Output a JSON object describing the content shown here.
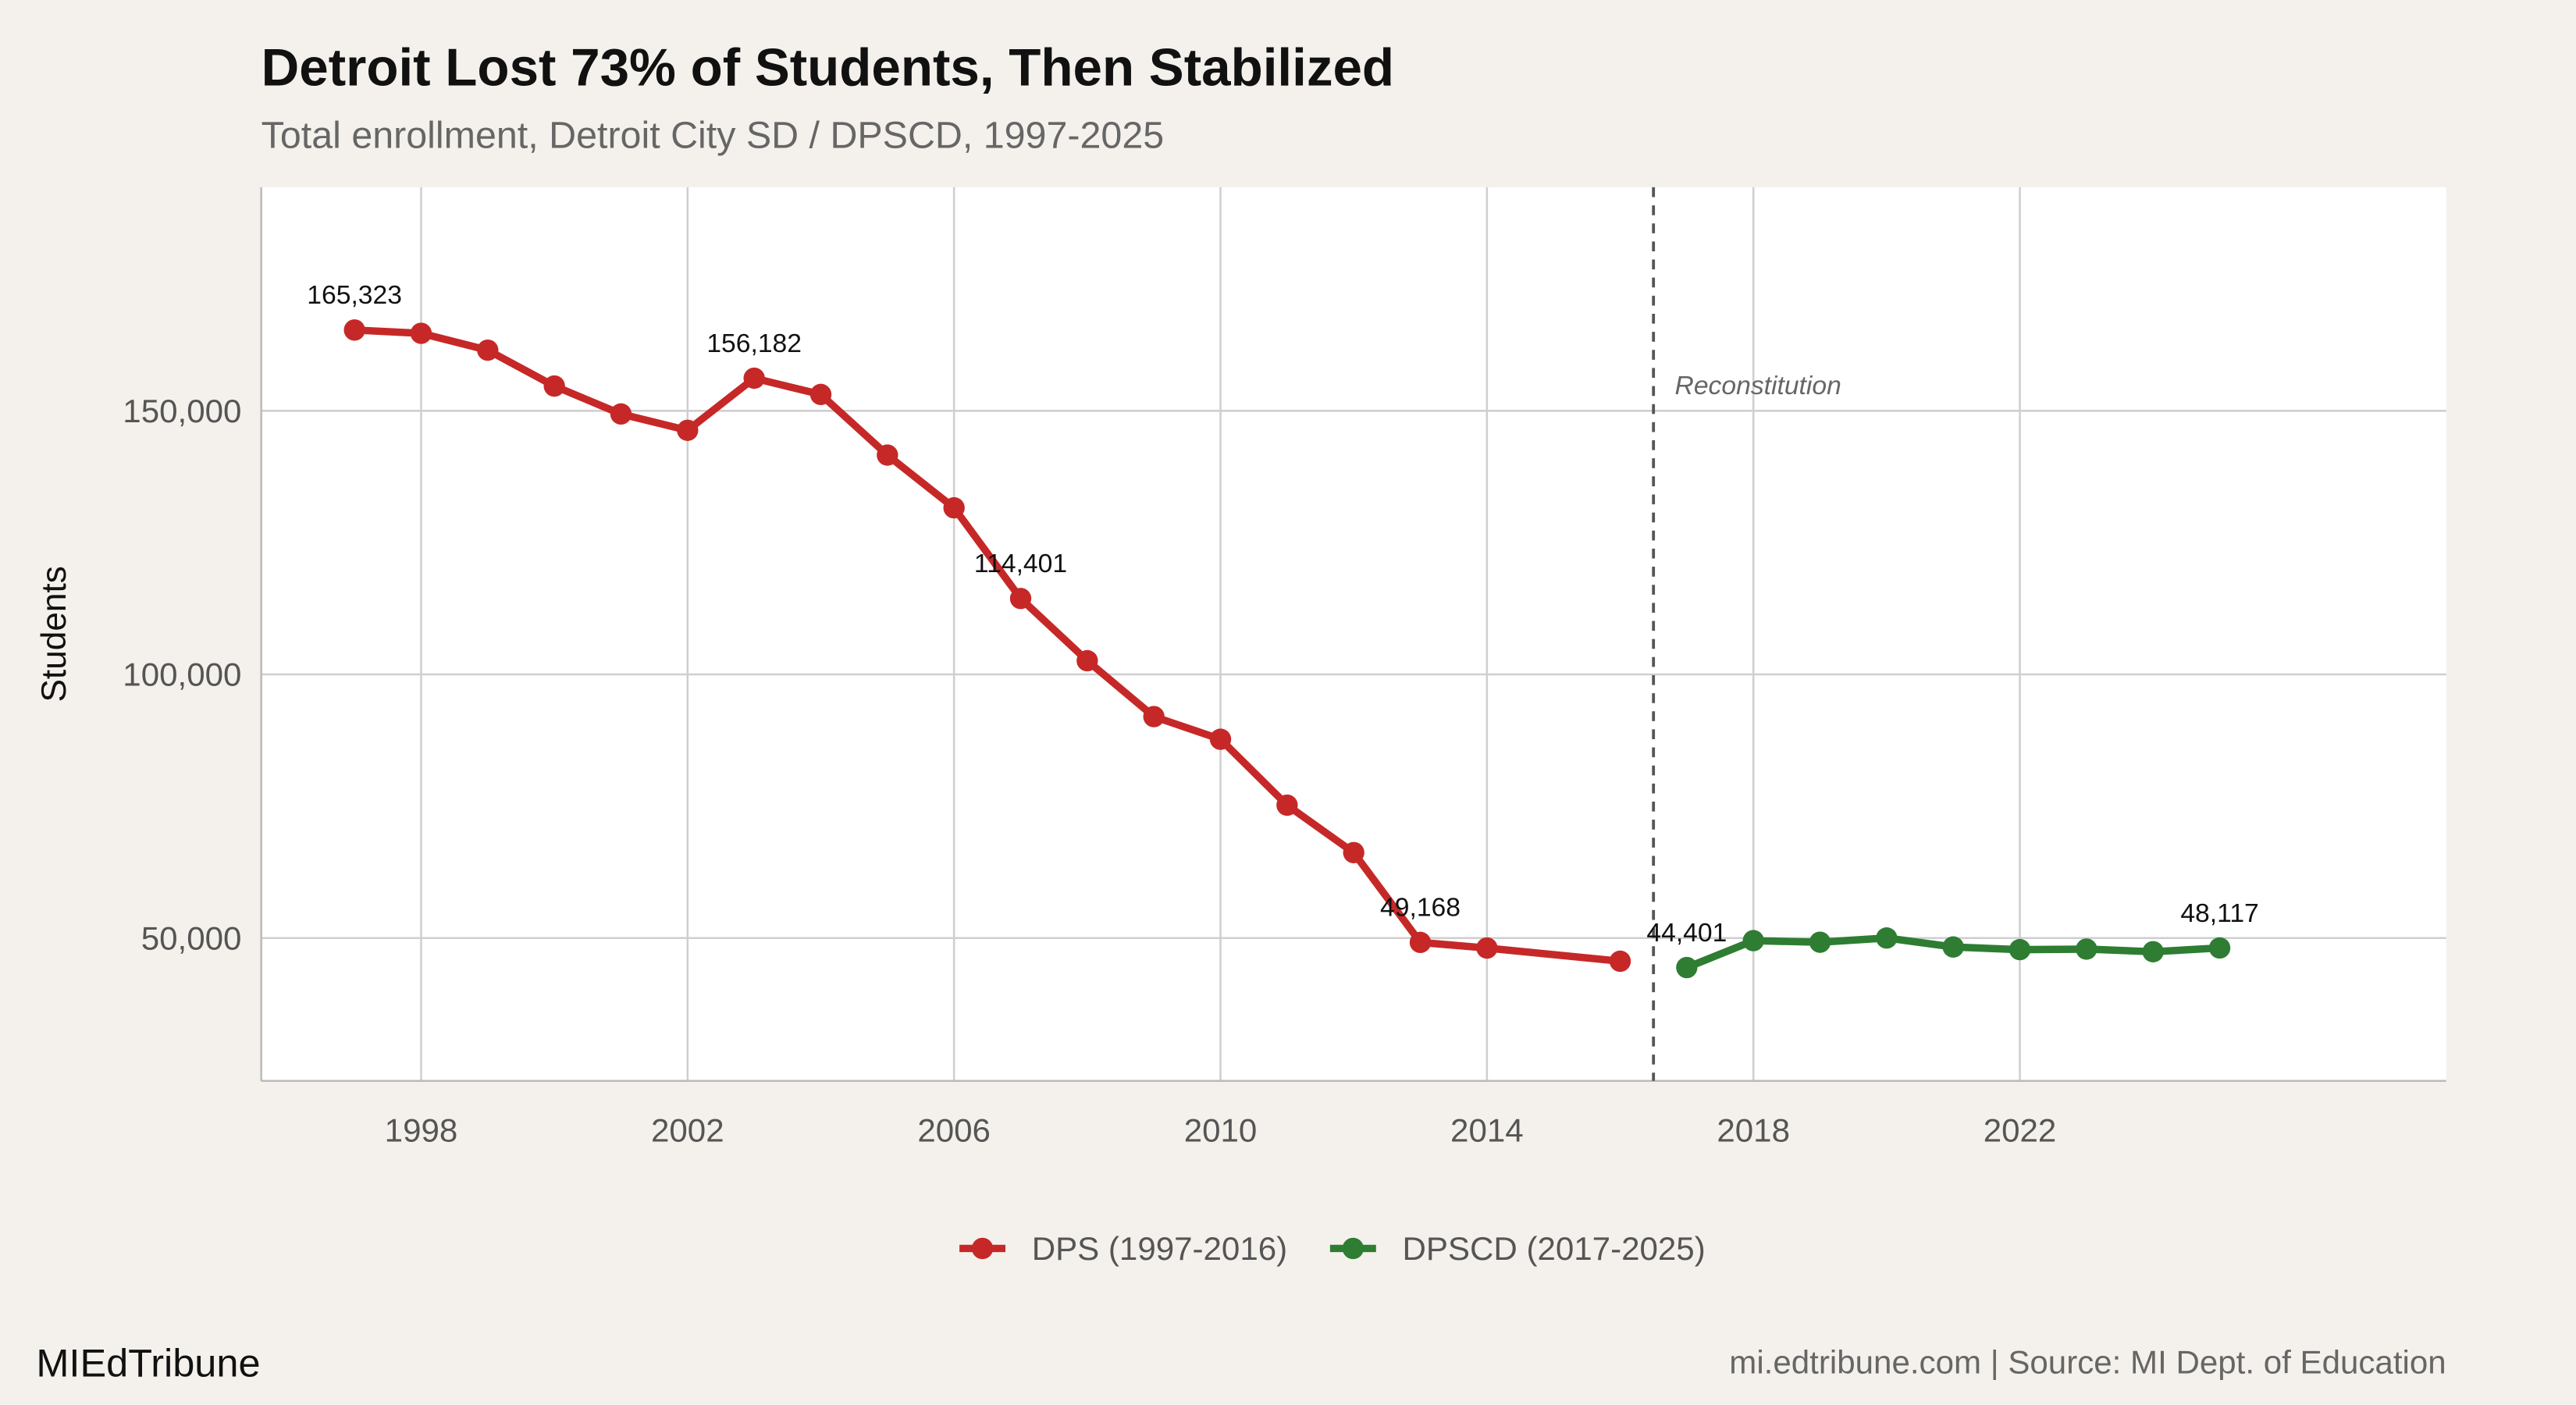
{
  "chart_data": {
    "type": "line",
    "title": "Detroit Lost 73% of Students, Then Stabilized",
    "subtitle": "Total enrollment, Detroit City SD / DPSCD, 1997-2025",
    "y_label": "Students",
    "series": [
      {
        "name": "DPS (1997-2016)",
        "color": "#c62828",
        "x": [
          1997,
          1998,
          1999,
          2000,
          2001,
          2002,
          2003,
          2004,
          2005,
          2006,
          2007,
          2008,
          2009,
          2010,
          2011,
          2012,
          2013,
          2014,
          2016
        ],
        "values": [
          165323,
          164700,
          161500,
          154700,
          149400,
          146300,
          156182,
          153100,
          141600,
          131600,
          114401,
          102600,
          92000,
          87700,
          75200,
          66200,
          49168,
          48100,
          45600
        ],
        "value_labels": [
          "165,323",
          null,
          null,
          null,
          null,
          null,
          "156,182",
          null,
          null,
          null,
          "114,401",
          null,
          null,
          null,
          null,
          null,
          "49,168",
          null,
          null
        ]
      },
      {
        "name": "DPSCD (2017-2025)",
        "color": "#2e7d32",
        "x": [
          2017,
          2018,
          2019,
          2020,
          2021,
          2022,
          2023,
          2024,
          2025
        ],
        "values": [
          44401,
          49500,
          49200,
          50000,
          48300,
          47800,
          47900,
          47400,
          48117
        ],
        "value_labels": [
          "44,401",
          null,
          null,
          null,
          null,
          null,
          null,
          null,
          "48,117"
        ]
      }
    ],
    "xlim": [
      1995.6,
      2028.4
    ],
    "xticks": [
      1998,
      2002,
      2006,
      2010,
      2014,
      2018,
      2022
    ],
    "ylim": [
      22900,
      192400
    ],
    "yticks": [
      {
        "value": 50000,
        "label": "50,000"
      },
      {
        "value": 100000,
        "label": "100,000"
      },
      {
        "value": 150000,
        "label": "150,000"
      }
    ],
    "grid": true,
    "annotation": {
      "x": 2016.5,
      "text": "Reconstitution"
    },
    "legend": "bottom",
    "footer_left": "MIEdTribune",
    "footer_right": "mi.edtribune.com | Source: MI Dept. of Education"
  }
}
